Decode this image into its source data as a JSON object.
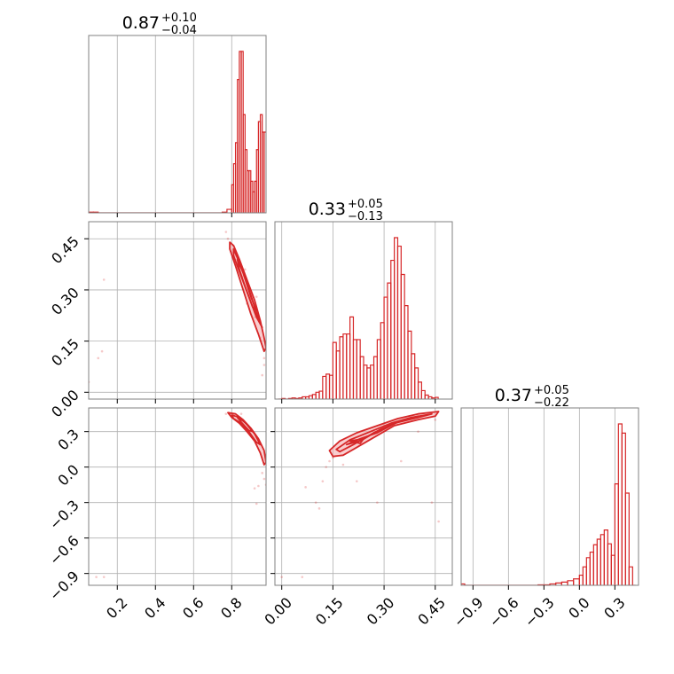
{
  "chart_data": {
    "type": "corner",
    "color": "#d62728",
    "fill_color": "#f4a6a8",
    "grid": true,
    "parameters": [
      {
        "median": "0.87",
        "plus": "+0.10",
        "minus": "−0.04",
        "range": [
          0.05,
          0.98
        ],
        "ticks": [
          {
            "v": 0.2,
            "label": "0.2"
          },
          {
            "v": 0.4,
            "label": "0.4"
          },
          {
            "v": 0.6,
            "label": "0.6"
          },
          {
            "v": 0.8,
            "label": "0.8"
          }
        ]
      },
      {
        "median": "0.33",
        "plus": "+0.05",
        "minus": "−0.13",
        "range": [
          -0.02,
          0.5
        ],
        "ticks": [
          {
            "v": 0.0,
            "label": "0.00"
          },
          {
            "v": 0.15,
            "label": "0.15"
          },
          {
            "v": 0.3,
            "label": "0.30"
          },
          {
            "v": 0.45,
            "label": "0.45"
          }
        ]
      },
      {
        "median": "0.37",
        "plus": "+0.05",
        "minus": "−0.22",
        "range": [
          -1.0,
          0.5
        ],
        "ticks": [
          {
            "v": -0.9,
            "label": "−0.9"
          },
          {
            "v": -0.6,
            "label": "−0.6"
          },
          {
            "v": -0.3,
            "label": "−0.3"
          },
          {
            "v": 0.0,
            "label": "0.0"
          },
          {
            "v": 0.3,
            "label": "0.3"
          }
        ]
      }
    ],
    "histograms": [
      {
        "param": 0,
        "bins": [
          [
            0.05,
            1
          ],
          [
            0.075,
            1
          ],
          [
            0.1,
            0
          ],
          [
            0.75,
            1
          ],
          [
            0.775,
            5
          ],
          [
            0.8,
            40
          ],
          [
            0.81,
            70
          ],
          [
            0.82,
            100
          ],
          [
            0.83,
            190
          ],
          [
            0.84,
            230
          ],
          [
            0.85,
            230
          ],
          [
            0.86,
            140
          ],
          [
            0.87,
            90
          ],
          [
            0.88,
            60
          ],
          [
            0.89,
            60
          ],
          [
            0.9,
            45
          ],
          [
            0.91,
            30
          ],
          [
            0.92,
            45
          ],
          [
            0.93,
            90
          ],
          [
            0.94,
            130
          ],
          [
            0.95,
            140
          ],
          [
            0.96,
            115
          ],
          [
            0.97,
            115
          ]
        ]
      },
      {
        "param": 1,
        "bins": [
          [
            -0.01,
            0
          ],
          [
            0.0,
            1
          ],
          [
            0.01,
            0
          ],
          [
            0.02,
            1
          ],
          [
            0.03,
            2
          ],
          [
            0.04,
            1
          ],
          [
            0.05,
            2
          ],
          [
            0.06,
            4
          ],
          [
            0.07,
            4
          ],
          [
            0.08,
            6
          ],
          [
            0.09,
            8
          ],
          [
            0.1,
            12
          ],
          [
            0.11,
            14
          ],
          [
            0.12,
            40
          ],
          [
            0.13,
            44
          ],
          [
            0.14,
            42
          ],
          [
            0.15,
            100
          ],
          [
            0.16,
            85
          ],
          [
            0.17,
            110
          ],
          [
            0.18,
            115
          ],
          [
            0.19,
            115
          ],
          [
            0.2,
            145
          ],
          [
            0.21,
            105
          ],
          [
            0.22,
            105
          ],
          [
            0.23,
            75
          ],
          [
            0.24,
            60
          ],
          [
            0.25,
            55
          ],
          [
            0.26,
            60
          ],
          [
            0.27,
            75
          ],
          [
            0.28,
            105
          ],
          [
            0.29,
            135
          ],
          [
            0.3,
            180
          ],
          [
            0.31,
            205
          ],
          [
            0.32,
            245
          ],
          [
            0.33,
            285
          ],
          [
            0.34,
            270
          ],
          [
            0.35,
            220
          ],
          [
            0.36,
            165
          ],
          [
            0.37,
            120
          ],
          [
            0.38,
            80
          ],
          [
            0.39,
            55
          ],
          [
            0.4,
            30
          ],
          [
            0.41,
            15
          ],
          [
            0.42,
            7
          ],
          [
            0.43,
            4
          ],
          [
            0.44,
            2
          ],
          [
            0.45,
            3
          ]
        ]
      },
      {
        "param": 2,
        "bins": [
          [
            -1.0,
            3
          ],
          [
            -0.97,
            0
          ],
          [
            -0.35,
            1
          ],
          [
            -0.3,
            1
          ],
          [
            -0.25,
            3
          ],
          [
            -0.2,
            5
          ],
          [
            -0.15,
            7
          ],
          [
            -0.1,
            10
          ],
          [
            -0.05,
            14
          ],
          [
            0.0,
            22
          ],
          [
            0.03,
            40
          ],
          [
            0.06,
            60
          ],
          [
            0.09,
            72
          ],
          [
            0.12,
            88
          ],
          [
            0.15,
            100
          ],
          [
            0.18,
            110
          ],
          [
            0.21,
            120
          ],
          [
            0.24,
            90
          ],
          [
            0.27,
            65
          ],
          [
            0.3,
            220
          ],
          [
            0.33,
            350
          ],
          [
            0.36,
            330
          ],
          [
            0.39,
            200
          ],
          [
            0.42,
            40
          ],
          [
            0.45,
            0
          ]
        ]
      }
    ],
    "pairs": [
      {
        "x": 0,
        "y": 1,
        "contours": [
          [
            [
              0.79,
              0.44
            ],
            [
              0.81,
              0.43
            ],
            [
              0.84,
              0.39
            ],
            [
              0.88,
              0.33
            ],
            [
              0.92,
              0.27
            ],
            [
              0.95,
              0.21
            ],
            [
              0.97,
              0.16
            ],
            [
              0.98,
              0.13
            ],
            [
              0.97,
              0.12
            ],
            [
              0.94,
              0.17
            ],
            [
              0.9,
              0.23
            ],
            [
              0.86,
              0.3
            ],
            [
              0.82,
              0.37
            ],
            [
              0.79,
              0.42
            ]
          ],
          [
            [
              0.81,
              0.42
            ],
            [
              0.84,
              0.38
            ],
            [
              0.88,
              0.32
            ],
            [
              0.92,
              0.25
            ],
            [
              0.95,
              0.2
            ],
            [
              0.96,
              0.19
            ],
            [
              0.93,
              0.22
            ],
            [
              0.89,
              0.28
            ],
            [
              0.85,
              0.34
            ],
            [
              0.81,
              0.4
            ]
          ],
          [
            [
              0.83,
              0.39
            ],
            [
              0.86,
              0.35
            ],
            [
              0.9,
              0.28
            ],
            [
              0.93,
              0.24
            ],
            [
              0.91,
              0.25
            ],
            [
              0.87,
              0.31
            ],
            [
              0.84,
              0.36
            ]
          ]
        ],
        "points": [
          [
            0.05,
            0.03
          ],
          [
            0.1,
            0.1
          ],
          [
            0.12,
            0.12
          ],
          [
            0.13,
            0.33
          ],
          [
            0.77,
            0.47
          ],
          [
            0.78,
            0.45
          ],
          [
            0.8,
            0.41
          ],
          [
            0.82,
            0.4
          ],
          [
            0.86,
            0.34
          ],
          [
            0.87,
            0.36
          ],
          [
            0.9,
            0.29
          ],
          [
            0.92,
            0.22
          ],
          [
            0.95,
            0.16
          ],
          [
            0.97,
            0.1
          ],
          [
            0.97,
            0.08
          ],
          [
            0.96,
            0.05
          ],
          [
            0.93,
            0.28
          ],
          [
            0.88,
            0.26
          ]
        ]
      },
      {
        "x": 0,
        "y": 2,
        "contours": [
          [
            [
              0.78,
              0.46
            ],
            [
              0.82,
              0.45
            ],
            [
              0.86,
              0.4
            ],
            [
              0.9,
              0.33
            ],
            [
              0.94,
              0.24
            ],
            [
              0.97,
              0.14
            ],
            [
              0.98,
              0.04
            ],
            [
              0.97,
              0.02
            ],
            [
              0.95,
              0.12
            ],
            [
              0.92,
              0.22
            ],
            [
              0.88,
              0.3
            ],
            [
              0.84,
              0.37
            ],
            [
              0.8,
              0.42
            ]
          ],
          [
            [
              0.8,
              0.44
            ],
            [
              0.84,
              0.42
            ],
            [
              0.88,
              0.36
            ],
            [
              0.92,
              0.28
            ],
            [
              0.95,
              0.19
            ],
            [
              0.93,
              0.21
            ],
            [
              0.89,
              0.3
            ],
            [
              0.85,
              0.37
            ],
            [
              0.81,
              0.41
            ]
          ],
          [
            [
              0.83,
              0.42
            ],
            [
              0.87,
              0.38
            ],
            [
              0.91,
              0.3
            ],
            [
              0.89,
              0.31
            ],
            [
              0.85,
              0.38
            ]
          ]
        ],
        "points": [
          [
            0.09,
            -0.93
          ],
          [
            0.13,
            -0.93
          ],
          [
            0.77,
            0.45
          ],
          [
            0.85,
            0.45
          ],
          [
            0.92,
            -0.18
          ],
          [
            0.93,
            -0.31
          ],
          [
            0.94,
            -0.16
          ],
          [
            0.96,
            -0.05
          ],
          [
            0.97,
            -0.1
          ],
          [
            0.98,
            -0.15
          ],
          [
            0.96,
            0.08
          ]
        ]
      },
      {
        "x": 1,
        "y": 2,
        "contours": [
          [
            [
              0.14,
              0.14
            ],
            [
              0.17,
              0.22
            ],
            [
              0.22,
              0.29
            ],
            [
              0.28,
              0.35
            ],
            [
              0.34,
              0.41
            ],
            [
              0.4,
              0.45
            ],
            [
              0.46,
              0.47
            ],
            [
              0.45,
              0.43
            ],
            [
              0.4,
              0.4
            ],
            [
              0.33,
              0.35
            ],
            [
              0.27,
              0.25
            ],
            [
              0.21,
              0.15
            ],
            [
              0.18,
              0.1
            ],
            [
              0.15,
              0.09
            ]
          ],
          [
            [
              0.16,
              0.15
            ],
            [
              0.2,
              0.23
            ],
            [
              0.26,
              0.3
            ],
            [
              0.32,
              0.37
            ],
            [
              0.38,
              0.42
            ],
            [
              0.44,
              0.45
            ],
            [
              0.4,
              0.42
            ],
            [
              0.33,
              0.37
            ],
            [
              0.27,
              0.29
            ],
            [
              0.21,
              0.19
            ],
            [
              0.17,
              0.13
            ]
          ],
          [
            [
              0.19,
              0.19
            ],
            [
              0.23,
              0.24
            ],
            [
              0.28,
              0.29
            ],
            [
              0.34,
              0.38
            ],
            [
              0.4,
              0.43
            ],
            [
              0.35,
              0.39
            ],
            [
              0.29,
              0.32
            ],
            [
              0.23,
              0.22
            ]
          ],
          [
            [
              0.2,
              0.22
            ],
            [
              0.24,
              0.24
            ],
            [
              0.23,
              0.2
            ]
          ]
        ],
        "points": [
          [
            0.0,
            -0.93
          ],
          [
            0.06,
            -0.93
          ],
          [
            0.07,
            -0.17
          ],
          [
            0.1,
            -0.3
          ],
          [
            0.11,
            -0.35
          ],
          [
            0.12,
            -0.12
          ],
          [
            0.13,
            0.0
          ],
          [
            0.14,
            0.05
          ],
          [
            0.15,
            0.08
          ],
          [
            0.18,
            0.02
          ],
          [
            0.22,
            -0.12
          ],
          [
            0.28,
            -0.3
          ],
          [
            0.35,
            0.05
          ],
          [
            0.4,
            0.3
          ],
          [
            0.44,
            -0.3
          ],
          [
            0.46,
            -0.46
          ],
          [
            0.45,
            0.4
          ],
          [
            0.3,
            0.35
          ]
        ]
      }
    ]
  }
}
